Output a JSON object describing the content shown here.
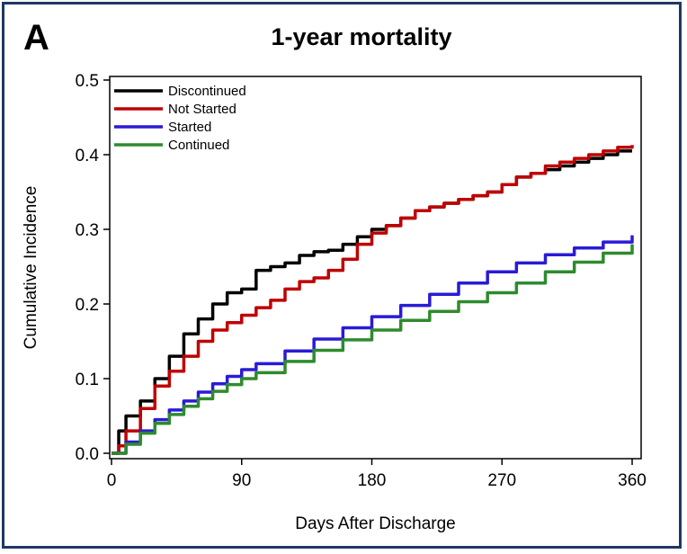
{
  "panel_label": "A",
  "chart_data": {
    "type": "line",
    "title": "1-year mortality",
    "xlabel": "Days After Discharge",
    "ylabel": "Cumulative Incidence",
    "xlim": [
      0,
      360
    ],
    "ylim": [
      0,
      0.5
    ],
    "xticks": [
      0,
      90,
      180,
      270,
      360
    ],
    "yticks": [
      "0.0",
      "0.1",
      "0.2",
      "0.3",
      "0.4",
      "0.5"
    ],
    "grid": false,
    "legend_position": "top-left",
    "series": [
      {
        "name": "Discontinued",
        "color": "#000000",
        "x": [
          0,
          5,
          10,
          20,
          30,
          40,
          50,
          60,
          70,
          80,
          90,
          100,
          110,
          120,
          130,
          140,
          150,
          160,
          170,
          180,
          190,
          200,
          210,
          220,
          230,
          240,
          250,
          260,
          270,
          280,
          290,
          300,
          310,
          320,
          330,
          340,
          350,
          360
        ],
        "y": [
          0.0,
          0.03,
          0.05,
          0.07,
          0.1,
          0.13,
          0.16,
          0.18,
          0.2,
          0.215,
          0.22,
          0.245,
          0.25,
          0.255,
          0.265,
          0.27,
          0.272,
          0.28,
          0.29,
          0.3,
          0.305,
          0.315,
          0.325,
          0.33,
          0.335,
          0.34,
          0.345,
          0.35,
          0.36,
          0.37,
          0.375,
          0.38,
          0.385,
          0.39,
          0.395,
          0.4,
          0.405,
          0.405
        ]
      },
      {
        "name": "Not Started",
        "color": "#c00000",
        "x": [
          0,
          5,
          10,
          20,
          30,
          40,
          50,
          60,
          70,
          80,
          90,
          100,
          110,
          120,
          130,
          140,
          150,
          160,
          170,
          180,
          190,
          200,
          210,
          220,
          230,
          240,
          250,
          260,
          270,
          280,
          290,
          300,
          310,
          320,
          330,
          340,
          350,
          360
        ],
        "y": [
          0.0,
          0.01,
          0.03,
          0.06,
          0.09,
          0.11,
          0.13,
          0.15,
          0.165,
          0.175,
          0.185,
          0.195,
          0.205,
          0.22,
          0.23,
          0.235,
          0.245,
          0.26,
          0.28,
          0.295,
          0.305,
          0.315,
          0.325,
          0.33,
          0.335,
          0.34,
          0.345,
          0.35,
          0.36,
          0.37,
          0.375,
          0.385,
          0.39,
          0.395,
          0.4,
          0.405,
          0.41,
          0.413
        ]
      },
      {
        "name": "Started",
        "color": "#2a1bd6",
        "x": [
          0,
          10,
          20,
          30,
          40,
          50,
          60,
          70,
          80,
          90,
          100,
          120,
          140,
          160,
          180,
          200,
          220,
          240,
          260,
          280,
          300,
          320,
          340,
          360
        ],
        "y": [
          0.0,
          0.015,
          0.03,
          0.045,
          0.058,
          0.07,
          0.082,
          0.093,
          0.103,
          0.112,
          0.12,
          0.137,
          0.153,
          0.168,
          0.183,
          0.198,
          0.213,
          0.228,
          0.243,
          0.255,
          0.266,
          0.275,
          0.283,
          0.292
        ]
      },
      {
        "name": "Continued",
        "color": "#2e8b2e",
        "x": [
          0,
          10,
          20,
          30,
          40,
          50,
          60,
          70,
          80,
          90,
          100,
          120,
          140,
          160,
          180,
          200,
          220,
          240,
          260,
          280,
          300,
          320,
          340,
          360
        ],
        "y": [
          0.0,
          0.012,
          0.027,
          0.04,
          0.052,
          0.063,
          0.073,
          0.083,
          0.092,
          0.1,
          0.108,
          0.123,
          0.138,
          0.152,
          0.165,
          0.178,
          0.19,
          0.203,
          0.215,
          0.228,
          0.243,
          0.256,
          0.268,
          0.28
        ]
      }
    ]
  }
}
